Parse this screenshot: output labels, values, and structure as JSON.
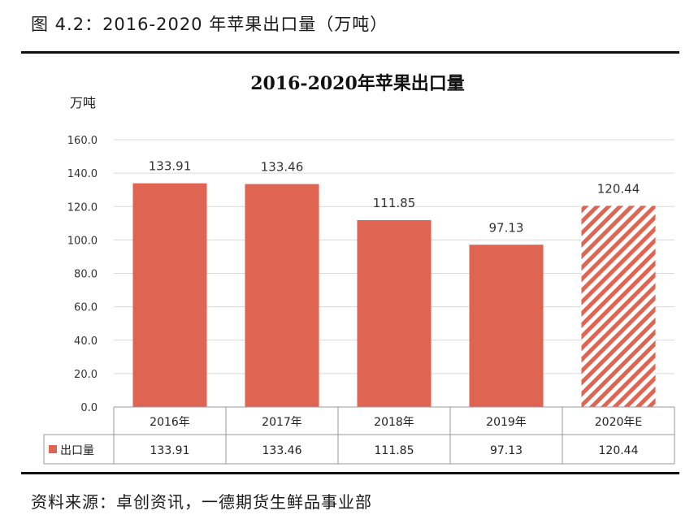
{
  "figure_caption": "图 4.2：2016-2020 年苹果出口量（万吨）",
  "source_text": "资料来源：卓创资讯，一德期货生鲜品事业部",
  "colors": {
    "bar": "#E06452",
    "grid": "#d9d9d9",
    "axis": "#999999"
  },
  "chart_data": {
    "type": "bar",
    "title": "2016-2020年苹果出口量",
    "ylabel": "万吨",
    "xlabel": "",
    "ylim": [
      0,
      160
    ],
    "yticks": [
      "0.0",
      "20.0",
      "40.0",
      "60.0",
      "80.0",
      "100.0",
      "120.0",
      "140.0",
      "160.0"
    ],
    "categories": [
      "2016年",
      "2017年",
      "2018年",
      "2019年",
      "2020年E"
    ],
    "series": [
      {
        "name": "出口量",
        "values": [
          133.91,
          133.46,
          111.85,
          97.13,
          120.44
        ],
        "labels": [
          "133.91",
          "133.46",
          "111.85",
          "97.13",
          "120.44"
        ],
        "estimated": [
          false,
          false,
          false,
          false,
          true
        ]
      }
    ],
    "grid": true,
    "legend": "data-table-left"
  }
}
